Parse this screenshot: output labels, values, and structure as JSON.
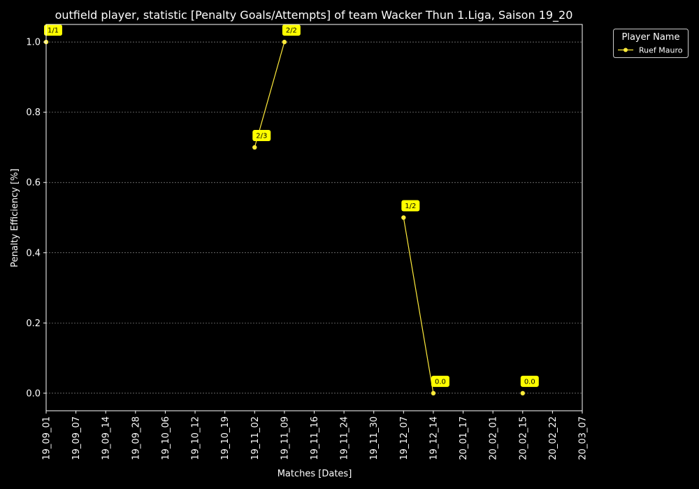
{
  "chart_data": {
    "type": "line",
    "title": "outfield player, statistic [Penalty Goals/Attempts] of team Wacker Thun 1.Liga, Saison 19_20",
    "xlabel": "Matches [Dates]",
    "ylabel": "Penalty Efficiency [%]",
    "categories": [
      "19_09_01",
      "19_09_07",
      "19_09_14",
      "19_09_28",
      "19_10_06",
      "19_10_12",
      "19_10_19",
      "19_11_02",
      "19_11_09",
      "19_11_16",
      "19_11_24",
      "19_11_30",
      "19_12_07",
      "19_12_14",
      "20_01_17",
      "20_02_01",
      "20_02_15",
      "20_02_22",
      "20_03_07"
    ],
    "ylim": [
      -0.05,
      1.05
    ],
    "yticks": [
      0.0,
      0.2,
      0.4,
      0.6,
      0.8,
      1.0
    ],
    "ytick_labels": [
      "0.0",
      "0.2",
      "0.4",
      "0.6",
      "0.8",
      "1.0"
    ],
    "grid": true,
    "legend": {
      "title": "Player Name",
      "position": "outside-top-right"
    },
    "colors": {
      "background": "#000000",
      "axes": "#ffffff",
      "grid": "#8a8a8a",
      "series": "#ffeb3b",
      "annotation_box": "#ffff00"
    },
    "series": [
      {
        "name": "Ruef Mauro",
        "segments": [
          [
            {
              "x": "19_09_01",
              "y": 1.0,
              "label": "1/1"
            }
          ],
          [
            {
              "x": "19_11_02",
              "y": 0.7,
              "label": "2/3"
            },
            {
              "x": "19_11_09",
              "y": 1.0,
              "label": "2/2"
            }
          ],
          [
            {
              "x": "19_12_07",
              "y": 0.5,
              "label": "1/2"
            },
            {
              "x": "19_12_14",
              "y": 0.0,
              "label": "0.0"
            }
          ],
          [
            {
              "x": "20_02_15",
              "y": 0.0,
              "label": "0.0"
            }
          ]
        ]
      }
    ]
  }
}
